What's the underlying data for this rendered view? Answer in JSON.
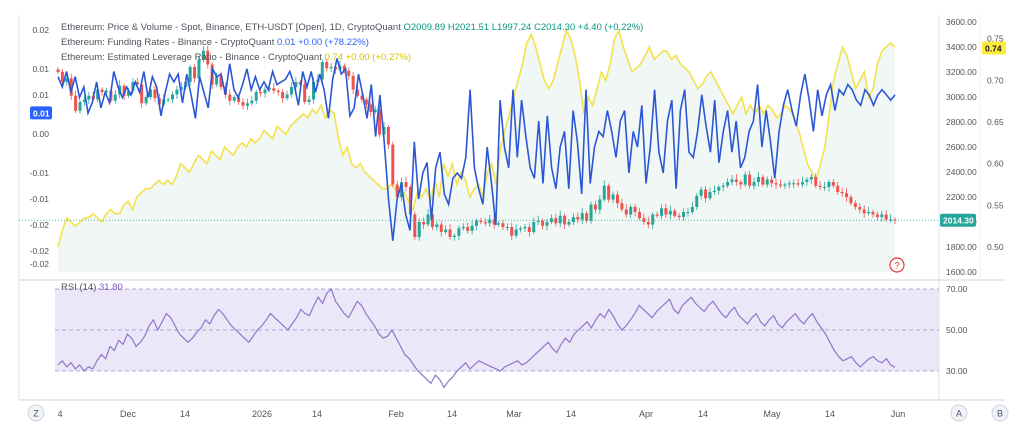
{
  "legend": {
    "line1": {
      "prefix": "Ethereum: Price & Volume - Spot, Binance, ETH-USDT [Open], 1D, CryptoQuant",
      "ohlc": "O2009.89 H2021.51 L1997.24 C2014.30 +4.40 (+0.22%)"
    },
    "line2": {
      "prefix": "Ethereum: Funding Rates - Binance - CryptoQuant",
      "value": "0.01 +0.00 (+78.22%)"
    },
    "line3": {
      "prefix": "Ethereum: Estimated Leverage Ratio - Binance - CryptoQuant",
      "value": "0.74 +0.00 (+0.27%)"
    },
    "rsi_label": "RSI (14)",
    "rsi_value": "31.80"
  },
  "badges": {
    "funding": "0.01",
    "leverage": "0.74",
    "price": "2014.30",
    "help": "?"
  },
  "bottom": {
    "left_btn": "Z",
    "a_btn": "A",
    "b_btn": "B"
  },
  "colors": {
    "price_up": "#26a69a",
    "price_down": "#ef5350",
    "funding": "#2b57d6",
    "leverage": "#f3e24a",
    "rsi": "#8b78c9",
    "badge_blue": "#2962ff",
    "badge_yellow": "#ffeb3b",
    "badge_green": "#26a69a"
  },
  "chart_data": [
    {
      "type": "line",
      "title": "",
      "axes": {
        "price": {
          "side": "right",
          "range": [
            1600,
            3600
          ],
          "ticks": [
            "3600.00",
            "3400.00",
            "3200.00",
            "3000.00",
            "2800.00",
            "2600.00",
            "2400.00",
            "2200.00",
            "2000.00",
            "1800.00",
            "1600.00"
          ]
        },
        "leverage": {
          "side": "right",
          "range": [
            0.47,
            0.77
          ],
          "ticks": [
            "0.75",
            "0.70",
            "0.65",
            "0.60",
            "0.55",
            "0.50"
          ]
        },
        "funding": {
          "side": "left",
          "range": [
            -0.0265,
            0.0215
          ],
          "tick_labels": [
            "0.02",
            "0.01",
            "0.01",
            "0.00",
            "-0.01",
            "-0.01",
            "-0.02",
            "-0.02",
            "-0.02"
          ],
          "tick_values": [
            0.02,
            0.0125,
            0.0075,
            0.0,
            -0.0075,
            -0.0125,
            -0.0175,
            -0.0225,
            -0.025
          ]
        }
      },
      "x_ticks": [
        "4",
        "Dec",
        "14",
        "2026",
        "14",
        "Feb",
        "14",
        "Mar",
        "14",
        "Apr",
        "14",
        "May",
        "14",
        "Jun"
      ],
      "grid": false,
      "last_price_line": 2014.3,
      "series": [
        {
          "name": "Ethereum: Price & Volume - Spot, Binance, ETH-USDT [Open], 1D, CryptoQuant",
          "kind": "candlestick",
          "close": [
            3200,
            3120,
            3150,
            3010,
            2890,
            2960,
            2980,
            3010,
            2980,
            3060,
            3040,
            3050,
            2970,
            3020,
            3090,
            3010,
            3050,
            3120,
            3100,
            2950,
            3000,
            3060,
            2990,
            2940,
            2980,
            2980,
            3020,
            3060,
            3080,
            3120,
            3240,
            3150,
            3300,
            3370,
            3260,
            3100,
            3170,
            3080,
            3020,
            2970,
            3000,
            2960,
            2930,
            2950,
            2970,
            3040,
            3030,
            3060,
            3070,
            3050,
            3040,
            2990,
            3020,
            3080,
            3120,
            3100,
            2960,
            2980,
            3120,
            3140,
            3280,
            3230,
            3240,
            3220,
            3250,
            3210,
            3170,
            3060,
            3010,
            2980,
            2940,
            2880,
            2900,
            2700,
            2760,
            2620,
            2300,
            2200,
            2320,
            2280,
            2060,
            1880,
            2000,
            1980,
            2060,
            1960,
            1980,
            1920,
            1940,
            1880,
            1890,
            1950,
            1960,
            1930,
            1970,
            2010,
            2000,
            1990,
            2020,
            1980,
            1990,
            1960,
            1960,
            1890,
            1940,
            1950,
            1960,
            1920,
            2000,
            2010,
            1970,
            2000,
            2030,
            1990,
            2050,
            1980,
            2000,
            2040,
            2020,
            2070,
            2010,
            2140,
            2100,
            2180,
            2290,
            2180,
            2220,
            2150,
            2100,
            2060,
            2120,
            2080,
            2030,
            2000,
            1980,
            2060,
            2050,
            2110,
            2060,
            2090,
            2050,
            2040,
            2080,
            2080,
            2120,
            2210,
            2260,
            2190,
            2240,
            2250,
            2280,
            2290,
            2320,
            2340,
            2320,
            2300,
            2380,
            2290,
            2320,
            2360,
            2300,
            2340,
            2310,
            2300,
            2290,
            2300,
            2310,
            2310,
            2300,
            2320,
            2340,
            2360,
            2290,
            2280,
            2280,
            2320,
            2290,
            2240,
            2230,
            2200,
            2150,
            2120,
            2100,
            2070,
            2080,
            2060,
            2040,
            2060,
            2020,
            2020,
            2014
          ]
        },
        {
          "name": "Ethereum: Funding Rates - Binance - CryptoQuant",
          "kind": "line",
          "axis": "funding",
          "values": [
            0.011,
            0.009,
            0.012,
            0.008,
            0.011,
            0.007,
            0.009,
            0.004,
            0.006,
            0.01,
            0.005,
            0.008,
            0.006,
            0.012,
            0.009,
            0.007,
            0.009,
            0.0075,
            0.01,
            0.008,
            0.012,
            0.007,
            0.011,
            0.009,
            0.0035,
            0.008,
            0.0115,
            0.01,
            0.0115,
            0.006,
            0.0115,
            0.0075,
            0.003,
            0.011,
            0.008,
            0.005,
            0.0125,
            0.011,
            0.0115,
            0.0075,
            0.0135,
            0.0085,
            0.007,
            0.0095,
            0.0125,
            0.0085,
            0.011,
            0.0085,
            0.01,
            0.0085,
            0.012,
            0.0095,
            0.01,
            0.0105,
            0.012,
            0.0095,
            0.0055,
            0.012,
            0.009,
            0.012,
            0.008,
            0.0115,
            0.0085,
            0.003,
            0.0105,
            0.0145,
            0.0115,
            0.0125,
            0.0035,
            0.005,
            0.0115,
            0.0075,
            0.003,
            0.0095,
            -0.0005,
            0.0075,
            -0.0015,
            -0.0125,
            -0.0205,
            -0.0125,
            -0.0095,
            -0.0155,
            -0.0185,
            -0.0015,
            -0.0125,
            -0.0075,
            -0.0055,
            -0.0165,
            -0.0065,
            -0.0035,
            -0.0115,
            -0.0135,
            -0.0085,
            -0.0075,
            -0.0085,
            -0.0045,
            0.0085,
            -0.0065,
            -0.0105,
            -0.0135,
            -0.0025,
            -0.0095,
            -0.0175,
            0.0065,
            -0.0025,
            -0.0065,
            0.0085,
            -0.0045,
            0.0065,
            -0.0005,
            -0.0065,
            -0.0085,
            0.0025,
            -0.0095,
            0.0035,
            -0.0065,
            -0.0105,
            -0.0025,
            0.0005,
            -0.0105,
            0.0045,
            -0.0015,
            -0.0115,
            0.0085,
            -0.0095,
            -0.0025,
            0.0005,
            -0.0005,
            0.0045,
            0.0005,
            -0.0045,
            0.0025,
            0.0045,
            -0.0075,
            0.0005,
            -0.0025,
            0.0055,
            -0.0095,
            -0.0025,
            0.0085,
            -0.0035,
            -0.0075,
            0.0025,
            0.0065,
            -0.0105,
            0.0045,
            0.0085,
            -0.0035,
            -0.0045,
            0.0005,
            0.0075,
            0.0015,
            -0.0035,
            0.0065,
            -0.0055,
            0.0005,
            0.0045,
            -0.0035,
            0.0025,
            -0.0065,
            -0.0045,
            0.0005,
            0.0025,
            0.0095,
            -0.0025,
            0.0045,
            -0.0015,
            -0.0085,
            0.0005,
            0.0055,
            0.0085,
            0.0045,
            0.0015,
            0.0075,
            0.0115,
            0.0065,
            0.0005,
            0.0085,
            0.0035,
            0.0075,
            0.0095,
            0.0045,
            0.0085,
            0.0075,
            0.0095,
            0.0085,
            0.0065,
            0.0055,
            0.0085,
            0.0075,
            0.0055,
            0.0075,
            0.0085,
            0.0075,
            0.0065,
            0.0075
          ]
        },
        {
          "name": "Ethereum: Estimated Leverage Ratio - Binance - CryptoQuant",
          "kind": "line",
          "axis": "leverage",
          "values": [
            0.5,
            0.52,
            0.535,
            0.53,
            0.525,
            0.53,
            0.535,
            0.535,
            0.54,
            0.535,
            0.53,
            0.54,
            0.545,
            0.54,
            0.54,
            0.55,
            0.555,
            0.545,
            0.56,
            0.565,
            0.57,
            0.57,
            0.575,
            0.58,
            0.575,
            0.58,
            0.575,
            0.585,
            0.6,
            0.595,
            0.59,
            0.6,
            0.61,
            0.605,
            0.6,
            0.615,
            0.61,
            0.605,
            0.62,
            0.615,
            0.61,
            0.62,
            0.625,
            0.62,
            0.63,
            0.625,
            0.63,
            0.64,
            0.635,
            0.63,
            0.645,
            0.64,
            0.635,
            0.645,
            0.65,
            0.655,
            0.66,
            0.655,
            0.665,
            0.66,
            0.67,
            0.655,
            0.665,
            0.66,
            0.63,
            0.61,
            0.62,
            0.6,
            0.595,
            0.6,
            0.59,
            0.585,
            0.58,
            0.575,
            0.57,
            0.57,
            0.575,
            0.57,
            0.56,
            0.565,
            0.555,
            0.545,
            0.565,
            0.56,
            0.57,
            0.555,
            0.58,
            0.56,
            0.6,
            0.585,
            0.6,
            0.575,
            0.59,
            0.58,
            0.56,
            0.57,
            0.575,
            0.56,
            0.59,
            0.6,
            0.575,
            0.62,
            0.64,
            0.66,
            0.68,
            0.7,
            0.72,
            0.745,
            0.755,
            0.74,
            0.72,
            0.7,
            0.69,
            0.7,
            0.72,
            0.74,
            0.76,
            0.75,
            0.73,
            0.7,
            0.66,
            0.68,
            0.67,
            0.69,
            0.71,
            0.7,
            0.72,
            0.75,
            0.76,
            0.74,
            0.725,
            0.71,
            0.715,
            0.72,
            0.73,
            0.74,
            0.725,
            0.73,
            0.735,
            0.735,
            0.725,
            0.73,
            0.72,
            0.715,
            0.71,
            0.7,
            0.69,
            0.695,
            0.705,
            0.71,
            0.7,
            0.69,
            0.68,
            0.67,
            0.66,
            0.67,
            0.68,
            0.66,
            0.67,
            0.66,
            0.67,
            0.66,
            0.67,
            0.665,
            0.655,
            0.66,
            0.67,
            0.665,
            0.655,
            0.64,
            0.62,
            0.6,
            0.59,
            0.58,
            0.6,
            0.62,
            0.66,
            0.7,
            0.72,
            0.74,
            0.73,
            0.71,
            0.69,
            0.7,
            0.71,
            0.68,
            0.69,
            0.72,
            0.735,
            0.74,
            0.745,
            0.74
          ]
        }
      ]
    },
    {
      "type": "line",
      "title": "RSI (14)",
      "ylim": [
        25,
        75
      ],
      "y_ticks": [
        "70.00",
        "50.00",
        "30.00"
      ],
      "bands": [
        70,
        50,
        30
      ],
      "series": [
        {
          "name": "RSI (14)",
          "values": [
            33,
            35,
            32,
            34,
            31,
            33,
            30,
            32,
            31,
            35,
            38,
            36,
            42,
            40,
            45,
            43,
            48,
            46,
            42,
            44,
            47,
            52,
            55,
            50,
            54,
            58,
            56,
            52,
            48,
            46,
            44,
            46,
            49,
            51,
            55,
            53,
            57,
            60,
            58,
            55,
            52,
            50,
            48,
            46,
            44,
            47,
            50,
            52,
            55,
            58,
            56,
            54,
            52,
            50,
            53,
            56,
            60,
            58,
            57,
            62,
            66,
            63,
            68,
            70,
            64,
            61,
            58,
            56,
            60,
            64,
            62,
            58,
            55,
            52,
            48,
            46,
            47,
            50,
            46,
            42,
            38,
            36,
            33,
            30,
            28,
            26,
            24,
            28,
            26,
            22,
            25,
            27,
            30,
            32,
            34,
            31,
            33,
            35,
            34,
            33,
            32,
            31,
            30,
            32,
            33,
            34,
            35,
            33,
            34,
            36,
            38,
            40,
            42,
            44,
            41,
            39,
            43,
            46,
            44,
            48,
            50,
            52,
            54,
            51,
            55,
            58,
            56,
            60,
            57,
            53,
            50,
            52,
            55,
            58,
            62,
            60,
            58,
            56,
            59,
            61,
            63,
            65,
            60,
            58,
            62,
            64,
            66,
            63,
            61,
            59,
            62,
            64,
            61,
            58,
            56,
            59,
            61,
            57,
            55,
            53,
            56,
            58,
            54,
            52,
            55,
            57,
            53,
            51,
            54,
            56,
            58,
            55,
            53,
            56,
            58,
            54,
            51,
            48,
            44,
            40,
            37,
            35,
            36,
            37,
            34,
            32,
            34,
            36,
            37,
            35,
            34,
            36,
            33,
            31.8
          ]
        }
      ]
    }
  ]
}
